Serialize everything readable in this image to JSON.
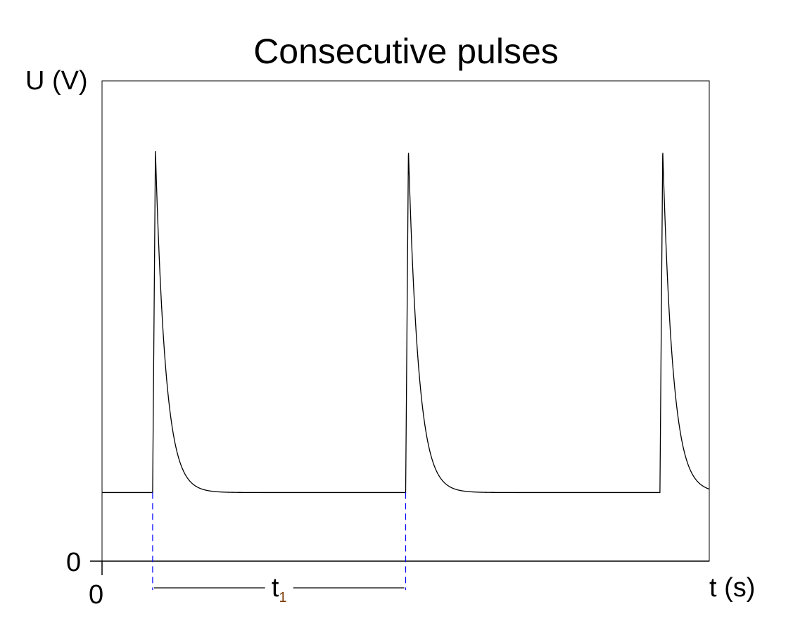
{
  "chart_data": {
    "type": "line",
    "title": "Consecutive pulses",
    "xlabel": "t (s)",
    "ylabel": "U (V)",
    "x_origin_label": "0",
    "y_origin_label": "0",
    "xlim": [
      0,
      2.4
    ],
    "ylim": [
      0,
      7
    ],
    "grid": false,
    "series": [
      {
        "baseline": 1,
        "peak": 6,
        "pulse_times": [
          0.2,
          1.2,
          2.205
        ],
        "rise_time": 0.011,
        "decay_constant": 0.04
      }
    ],
    "annotation": {
      "label": "t",
      "subscript": "1",
      "from": 0.2,
      "to": 1.2,
      "marker_color": "#0000ff"
    }
  }
}
